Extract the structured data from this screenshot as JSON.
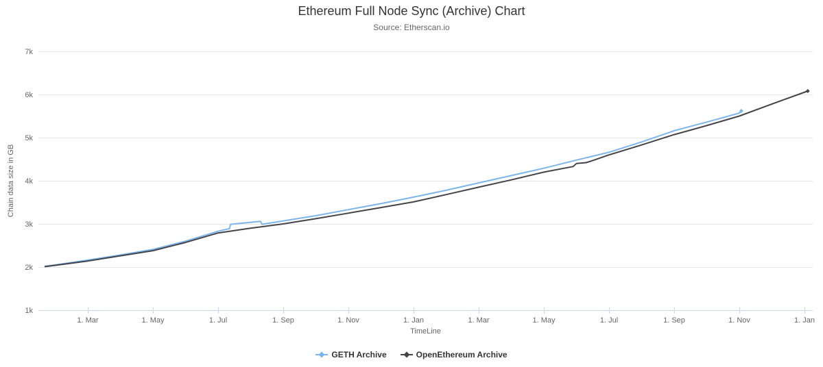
{
  "header": {
    "title": "Ethereum Full Node Sync (Archive) Chart",
    "subtitle": "Source: Etherscan.io"
  },
  "chart_data": {
    "type": "line",
    "title": "Ethereum Full Node Sync (Archive) Chart",
    "subtitle": "Source: Etherscan.io",
    "xlabel": "TimeLine",
    "ylabel": "Chain data size in GB",
    "grid": true,
    "legend_position": "bottom",
    "x_unit": "months since first January shown (ticks every 2 months, spanning 2 years)",
    "xlim": [
      0.4842,
      24.2526
    ],
    "ylim": [
      1000,
      7000
    ],
    "y_ticks": [
      {
        "v": 1000,
        "label": "1k"
      },
      {
        "v": 2000,
        "label": "2k"
      },
      {
        "v": 3000,
        "label": "3k"
      },
      {
        "v": 4000,
        "label": "4k"
      },
      {
        "v": 5000,
        "label": "5k"
      },
      {
        "v": 6000,
        "label": "6k"
      },
      {
        "v": 7000,
        "label": "7k"
      }
    ],
    "x_ticks": [
      {
        "m": 2,
        "label": "1. Mar"
      },
      {
        "m": 4,
        "label": "1. May"
      },
      {
        "m": 6,
        "label": "1. Jul"
      },
      {
        "m": 8,
        "label": "1. Sep"
      },
      {
        "m": 10,
        "label": "1. Nov"
      },
      {
        "m": 12,
        "label": "1. Jan"
      },
      {
        "m": 14,
        "label": "1. Mar"
      },
      {
        "m": 16,
        "label": "1. May"
      },
      {
        "m": 18,
        "label": "1. Jul"
      },
      {
        "m": 20,
        "label": "1. Sep"
      },
      {
        "m": 22,
        "label": "1. Nov"
      },
      {
        "m": 24,
        "label": "1. Jan"
      }
    ],
    "series": [
      {
        "name": "GETH Archive",
        "color": "#7cb5ec",
        "points": [
          [
            0.69,
            2020
          ],
          [
            1,
            2050
          ],
          [
            2,
            2160
          ],
          [
            3,
            2280
          ],
          [
            4,
            2410
          ],
          [
            5,
            2600
          ],
          [
            6,
            2830
          ],
          [
            6.35,
            2890
          ],
          [
            6.38,
            2990
          ],
          [
            7.3,
            3060
          ],
          [
            7.35,
            2990
          ],
          [
            8,
            3070
          ],
          [
            9,
            3190
          ],
          [
            10,
            3330
          ],
          [
            11,
            3470
          ],
          [
            12,
            3620
          ],
          [
            13,
            3780
          ],
          [
            14,
            3950
          ],
          [
            15,
            4120
          ],
          [
            16,
            4290
          ],
          [
            17,
            4480
          ],
          [
            18,
            4660
          ],
          [
            19,
            4900
          ],
          [
            20,
            5160
          ],
          [
            21,
            5360
          ],
          [
            22,
            5570
          ],
          [
            22.06,
            5620
          ]
        ]
      },
      {
        "name": "OpenEthereum Archive",
        "color": "#434348",
        "points": [
          [
            0.69,
            2010
          ],
          [
            1,
            2040
          ],
          [
            2,
            2140
          ],
          [
            3,
            2260
          ],
          [
            4,
            2380
          ],
          [
            5,
            2570
          ],
          [
            6,
            2790
          ],
          [
            7,
            2900
          ],
          [
            8,
            3000
          ],
          [
            9,
            3120
          ],
          [
            10,
            3250
          ],
          [
            11,
            3380
          ],
          [
            12,
            3510
          ],
          [
            13,
            3680
          ],
          [
            14,
            3850
          ],
          [
            15,
            4020
          ],
          [
            16,
            4200
          ],
          [
            16.9,
            4330
          ],
          [
            17,
            4400
          ],
          [
            17.3,
            4420
          ],
          [
            17.5,
            4470
          ],
          [
            18,
            4600
          ],
          [
            19,
            4830
          ],
          [
            20,
            5070
          ],
          [
            21,
            5280
          ],
          [
            22,
            5500
          ],
          [
            23,
            5780
          ],
          [
            24.1,
            6080
          ]
        ]
      }
    ]
  },
  "legend": {
    "items": [
      {
        "label": "GETH Archive",
        "color": "#7cb5ec"
      },
      {
        "label": "OpenEthereum Archive",
        "color": "#434348"
      }
    ]
  },
  "colors": {
    "grid_line": "#e6e6e6",
    "axis_line": "#ccd6eb",
    "tick_label": "#666666",
    "title": "#333333",
    "legend_text": "#333333",
    "background": "#ffffff"
  }
}
